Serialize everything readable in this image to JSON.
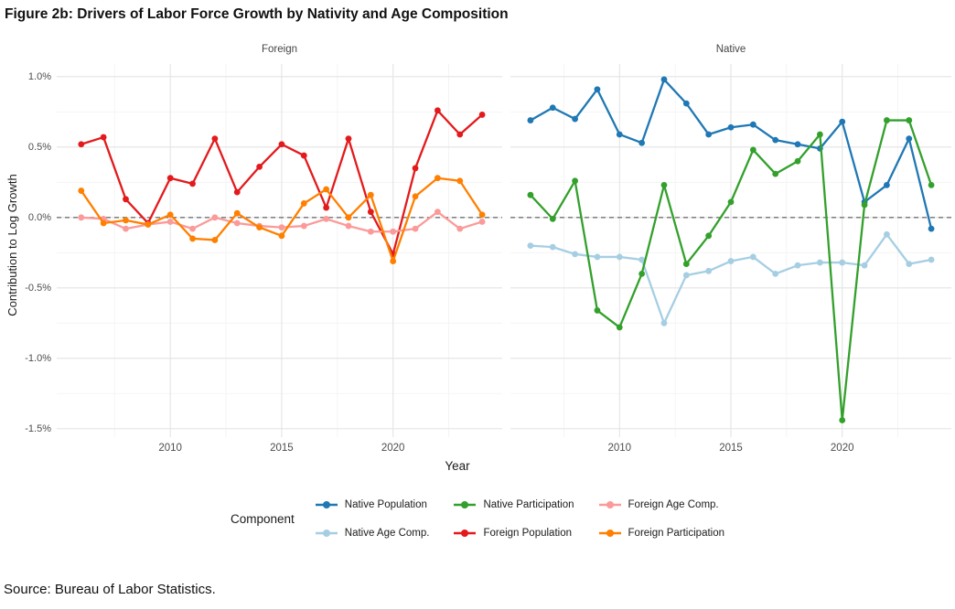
{
  "figure": {
    "title": "Figure 2b: Drivers of Labor Force Growth by Nativity and Age Composition",
    "source_note": "Source: Bureau of Labor Statistics."
  },
  "chart_data": {
    "type": "line",
    "title": "Figure 2b: Drivers of Labor Force Growth by Nativity and Age Composition",
    "xlabel": "Year",
    "ylabel": "Contribution to Log Growth",
    "unit": "percent contribution to log growth",
    "x": [
      2006,
      2007,
      2008,
      2009,
      2010,
      2011,
      2012,
      2013,
      2014,
      2015,
      2016,
      2017,
      2018,
      2019,
      2020,
      2021,
      2022,
      2023,
      2024
    ],
    "x_ticks": {
      "values": [
        2010,
        2015,
        2020
      ],
      "labels": [
        "2010",
        "2015",
        "2020"
      ]
    },
    "x_minor_gridlines": [
      2007.5,
      2012.5,
      2017.5,
      2022.5
    ],
    "y_ticks": {
      "values": [
        1.0,
        0.5,
        0.0,
        -0.5,
        -1.0,
        -1.5
      ],
      "labels": [
        "1.0%",
        "0.5%",
        "0.0%",
        "-0.5%",
        "-1.0%",
        "-1.5%"
      ]
    },
    "y_minor_gridlines": [
      0.75,
      0.25,
      -0.25,
      -0.75,
      -1.25
    ],
    "ylim": [
      -1.56,
      1.09
    ],
    "grid": "on",
    "zero_reference_line": {
      "value": 0,
      "style": "dashed",
      "color": "#737373"
    },
    "facets": [
      {
        "label": "Foreign",
        "series_draw_order": [
          "Foreign Population",
          "Foreign Age Comp.",
          "Foreign Participation"
        ]
      },
      {
        "label": "Native",
        "series_draw_order": [
          "Native Age Comp.",
          "Native Population",
          "Native Participation"
        ]
      }
    ],
    "series": [
      {
        "name": "Native Population",
        "facet": "Native",
        "color": "#1F78B4",
        "values": [
          0.69,
          0.78,
          0.7,
          0.91,
          0.59,
          0.53,
          0.98,
          0.81,
          0.59,
          0.64,
          0.66,
          0.55,
          0.52,
          0.49,
          0.68,
          0.11,
          0.23,
          0.56,
          -0.08
        ]
      },
      {
        "name": "Native Age Comp.",
        "facet": "Native",
        "color": "#A6CEE3",
        "values": [
          -0.2,
          -0.21,
          -0.26,
          -0.28,
          -0.28,
          -0.3,
          -0.75,
          -0.41,
          -0.38,
          -0.31,
          -0.28,
          -0.4,
          -0.34,
          -0.32,
          -0.32,
          -0.34,
          -0.12,
          -0.33,
          -0.3
        ]
      },
      {
        "name": "Native Participation",
        "facet": "Native",
        "color": "#33A02C",
        "values": [
          0.16,
          -0.01,
          0.26,
          -0.66,
          -0.78,
          -0.4,
          0.23,
          -0.33,
          -0.13,
          0.11,
          0.48,
          0.31,
          0.4,
          0.59,
          -1.44,
          0.09,
          0.69,
          0.69,
          0.23
        ]
      },
      {
        "name": "Foreign Population",
        "facet": "Foreign",
        "color": "#E31A1C",
        "values": [
          0.52,
          0.57,
          0.13,
          -0.04,
          0.28,
          0.24,
          0.56,
          0.18,
          0.36,
          0.52,
          0.44,
          0.07,
          0.56,
          0.04,
          -0.26,
          0.35,
          0.76,
          0.59,
          0.73
        ]
      },
      {
        "name": "Foreign Age Comp.",
        "facet": "Foreign",
        "color": "#FB9A99",
        "values": [
          0.0,
          -0.01,
          -0.08,
          -0.05,
          -0.03,
          -0.08,
          0.0,
          -0.04,
          -0.06,
          -0.07,
          -0.06,
          -0.01,
          -0.06,
          -0.1,
          -0.1,
          -0.08,
          0.04,
          -0.08,
          -0.03
        ]
      },
      {
        "name": "Foreign Participation",
        "facet": "Foreign",
        "color": "#FF7F00",
        "values": [
          0.19,
          -0.04,
          -0.02,
          -0.05,
          0.02,
          -0.15,
          -0.16,
          0.03,
          -0.07,
          -0.13,
          0.1,
          0.2,
          0.0,
          0.16,
          -0.31,
          0.15,
          0.28,
          0.26,
          0.02
        ]
      }
    ],
    "legend": {
      "title": "Component",
      "position": "bottom",
      "items": [
        {
          "label": "Native Population",
          "color": "#1F78B4"
        },
        {
          "label": "Native Participation",
          "color": "#33A02C"
        },
        {
          "label": "Foreign Age Comp.",
          "color": "#FB9A99"
        },
        {
          "label": "Native Age Comp.",
          "color": "#A6CEE3"
        },
        {
          "label": "Foreign Population",
          "color": "#E31A1C"
        },
        {
          "label": "Foreign Participation",
          "color": "#FF7F00"
        }
      ]
    }
  }
}
